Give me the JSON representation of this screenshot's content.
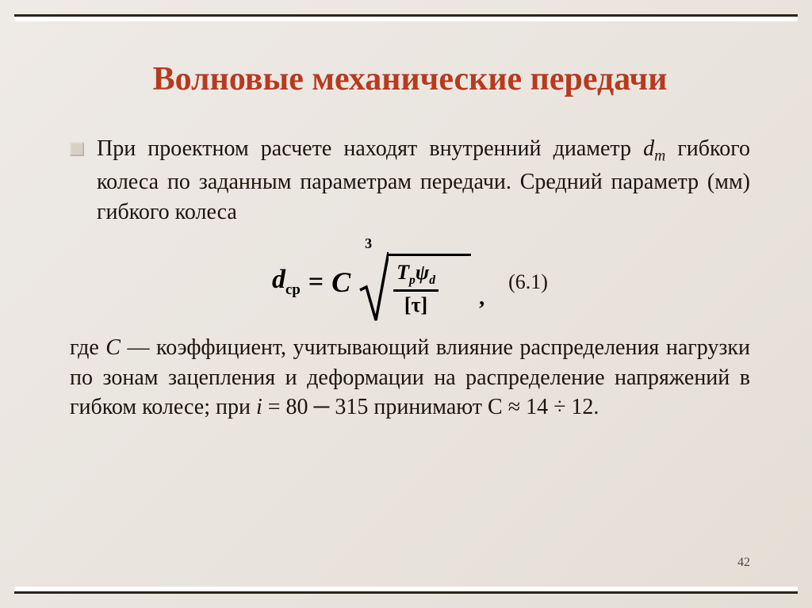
{
  "title": "Волновые механические передачи",
  "paragraph1_html": "При проектном расчете находят внутренний диаметр <i>d<sub class='sub'>m</sub></i> гибкого колеса по заданным параметрам передачи. Средний параметр (мм) гибкого колеса",
  "formula": {
    "lhs_var": "d",
    "lhs_sub": "ср",
    "eq": "=",
    "coef": "C",
    "root_index": "3",
    "numerator_html": "T<sub style='font-size:0.6em;vertical-align:sub;'>p</sub>ψ<sub style='font-size:0.6em;vertical-align:sub;'>d</sub>",
    "denominator": "[τ]",
    "trailing": ","
  },
  "equation_number": "(6.1)",
  "paragraph2_html": "где <i>C</i> — коэффициент, учитывающий влияние распределения нагрузки по зонам зацепления и деформации на распределение напряжений в гибком колесе; при <i>i</i> = 80 ─ 315 принимают С ≈ 14 ÷ 12.",
  "page_number": "42",
  "colors": {
    "title": "#b83a1e",
    "text": "#1a140b",
    "frame": "#2c2418",
    "background_start": "#eeeae6",
    "background_end": "#e4ded5"
  }
}
